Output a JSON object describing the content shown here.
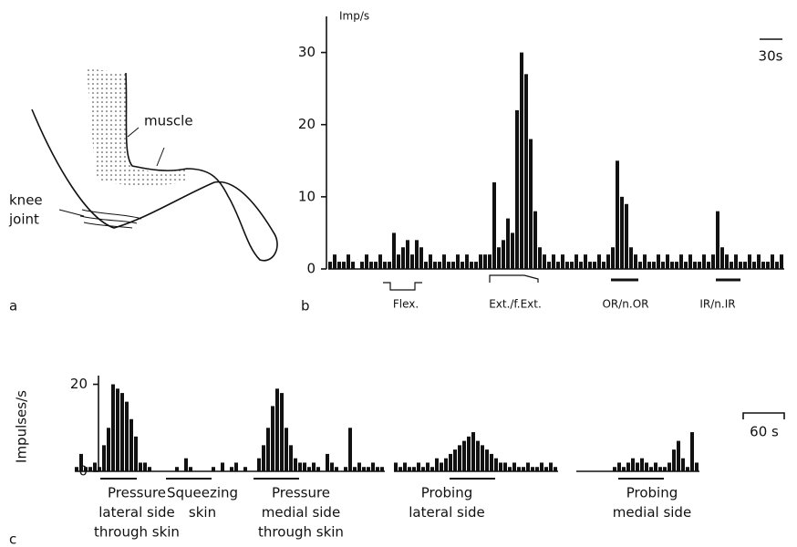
{
  "panel_a": {
    "label": "a",
    "muscle": "muscle",
    "knee": "knee",
    "joint": "joint"
  },
  "chart_data": [
    {
      "type": "bar",
      "panel": "b",
      "ylabel": "Imp/s",
      "scale_bar": "30s",
      "color": "#111111",
      "ylim": [
        0,
        35
      ],
      "yticks": [
        0,
        10,
        20,
        30
      ],
      "values": [
        1,
        2,
        1,
        1,
        2,
        1,
        0,
        1,
        2,
        1,
        1,
        2,
        1,
        1,
        5,
        2,
        3,
        4,
        2,
        4,
        3,
        1,
        2,
        1,
        1,
        2,
        1,
        1,
        2,
        1,
        2,
        1,
        1,
        2,
        2,
        2,
        12,
        3,
        4,
        7,
        5,
        22,
        30,
        27,
        18,
        8,
        3,
        2,
        1,
        2,
        1,
        2,
        1,
        1,
        2,
        1,
        2,
        1,
        1,
        2,
        1,
        2,
        3,
        15,
        10,
        9,
        3,
        2,
        1,
        2,
        1,
        1,
        2,
        1,
        2,
        1,
        1,
        2,
        1,
        2,
        1,
        1,
        2,
        1,
        2,
        8,
        3,
        2,
        1,
        2,
        1,
        1,
        2,
        1,
        2,
        1,
        1,
        2,
        1,
        2
      ],
      "stimuli": [
        "Flex.",
        "Ext./f.Ext.",
        "OR/n.OR",
        "IR/n.IR"
      ]
    },
    {
      "type": "bar",
      "panel": "c",
      "ylabel": "Impulses/s",
      "scale_bar": "60 s",
      "color": "#111111",
      "ylim": [
        0,
        22
      ],
      "yticks": [
        0,
        20
      ],
      "values": [
        1,
        4,
        1,
        1,
        2,
        1,
        6,
        10,
        20,
        19,
        18,
        16,
        12,
        8,
        2,
        2,
        1,
        0,
        0,
        0,
        0,
        0,
        1,
        0,
        3,
        1,
        0,
        0,
        0,
        0,
        1,
        0,
        2,
        0,
        1,
        2,
        0,
        1,
        0,
        0,
        3,
        6,
        10,
        15,
        19,
        18,
        10,
        6,
        3,
        2,
        2,
        1,
        2,
        1,
        0,
        4,
        2,
        1,
        0,
        1,
        10,
        1,
        2,
        1,
        1,
        2,
        1,
        1,
        null,
        null,
        2,
        1,
        2,
        1,
        1,
        2,
        1,
        2,
        1,
        3,
        2,
        3,
        4,
        5,
        6,
        7,
        8,
        9,
        7,
        6,
        5,
        4,
        3,
        2,
        2,
        1,
        2,
        1,
        1,
        2,
        1,
        1,
        2,
        1,
        2,
        1,
        null,
        null,
        null,
        null,
        0,
        0,
        0,
        0,
        0,
        0,
        0,
        0,
        1,
        2,
        1,
        2,
        3,
        2,
        3,
        2,
        1,
        2,
        1,
        1,
        2,
        5,
        7,
        3,
        1,
        9,
        2
      ],
      "stimuli": [
        [
          "Pressure",
          "lateral side",
          "through skin"
        ],
        [
          "Squeezing",
          "skin"
        ],
        [
          "Pressure",
          "medial side",
          "through skin"
        ],
        [
          "Probing",
          "lateral side"
        ],
        [
          "Probing",
          "medial side"
        ]
      ]
    }
  ]
}
